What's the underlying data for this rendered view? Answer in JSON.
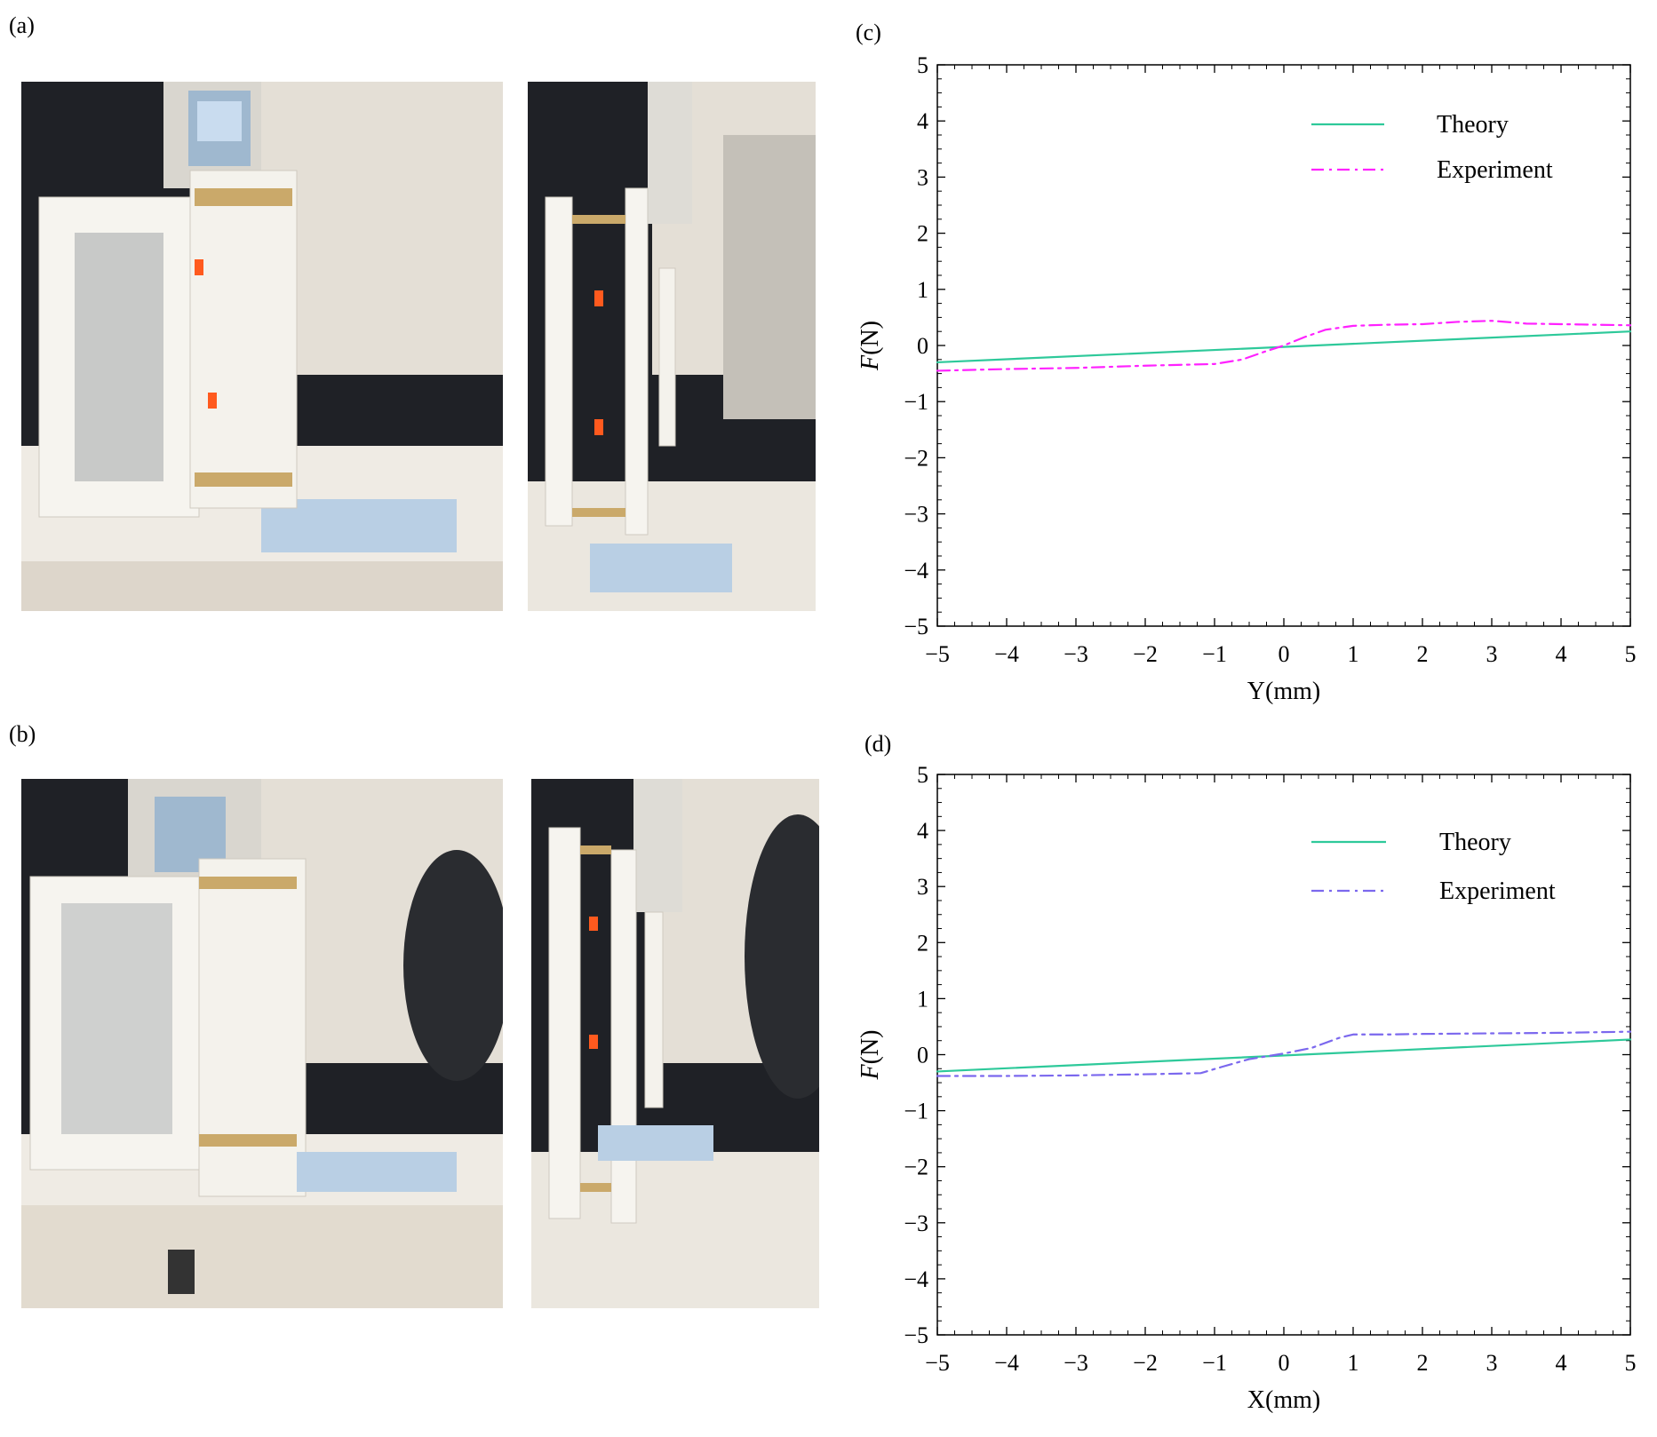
{
  "panels": {
    "a": "(a)",
    "b": "(b)",
    "c": "(c)",
    "d": "(d)"
  },
  "colors": {
    "theory": "#2ec99a",
    "experiment_c": "#ff22ff",
    "experiment_d": "#7b68ee"
  },
  "chart_data": [
    {
      "panel": "(c)",
      "type": "line",
      "xlabel": "Y(mm)",
      "ylabel_italic": "F",
      "ylabel_unit": "(N)",
      "xlim": [
        -5,
        5
      ],
      "ylim": [
        -5,
        5
      ],
      "xticks": [
        -5,
        -4,
        -3,
        -2,
        -1,
        0,
        1,
        2,
        3,
        4,
        5
      ],
      "yticks": [
        -5,
        -4,
        -3,
        -2,
        -1,
        0,
        1,
        2,
        3,
        4,
        5
      ],
      "legend": "top-right",
      "series": [
        {
          "name": "Theory",
          "style": "solid",
          "x": [
            -5,
            5
          ],
          "y": [
            -0.3,
            0.25
          ]
        },
        {
          "name": "Experiment",
          "style": "dashdot",
          "x": [
            -5,
            -4,
            -3,
            -2,
            -1,
            -0.6,
            -0.3,
            0,
            0.3,
            0.6,
            1,
            1.5,
            2,
            2.5,
            3,
            3.5,
            4,
            4.5,
            5
          ],
          "y": [
            -0.45,
            -0.42,
            -0.4,
            -0.36,
            -0.33,
            -0.25,
            -0.12,
            0.0,
            0.15,
            0.28,
            0.35,
            0.37,
            0.38,
            0.42,
            0.44,
            0.39,
            0.38,
            0.37,
            0.36
          ]
        }
      ]
    },
    {
      "panel": "(d)",
      "type": "line",
      "xlabel": "X(mm)",
      "ylabel_italic": "F",
      "ylabel_unit": "(N)",
      "xlim": [
        -5,
        5
      ],
      "ylim": [
        -5,
        5
      ],
      "xticks": [
        -5,
        -4,
        -3,
        -2,
        -1,
        0,
        1,
        2,
        3,
        4,
        5
      ],
      "yticks": [
        -5,
        -4,
        -3,
        -2,
        -1,
        0,
        1,
        2,
        3,
        4,
        5
      ],
      "legend": "top-right",
      "series": [
        {
          "name": "Theory",
          "style": "solid",
          "x": [
            -5,
            5
          ],
          "y": [
            -0.3,
            0.27
          ]
        },
        {
          "name": "Experiment",
          "style": "dashdot",
          "x": [
            -5,
            -4,
            -3,
            -2,
            -1.2,
            -0.9,
            -0.5,
            0,
            0.4,
            0.8,
            1,
            1.5,
            2,
            3,
            4,
            5
          ],
          "y": [
            -0.38,
            -0.38,
            -0.37,
            -0.35,
            -0.33,
            -0.22,
            -0.08,
            0.02,
            0.12,
            0.3,
            0.36,
            0.36,
            0.37,
            0.38,
            0.39,
            0.41
          ]
        }
      ]
    }
  ]
}
